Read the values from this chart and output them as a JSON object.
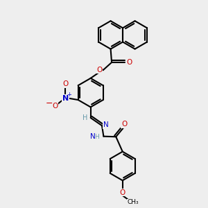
{
  "bg_color": "#eeeeee",
  "bond_color": "#000000",
  "O_color": "#cc0000",
  "N_color": "#0000cc",
  "H_color": "#6699aa",
  "lw": 1.5,
  "r": 0.7,
  "figsize": [
    3.0,
    3.0
  ],
  "dpi": 100,
  "xlim": [
    0,
    10
  ],
  "ylim": [
    0,
    10
  ]
}
